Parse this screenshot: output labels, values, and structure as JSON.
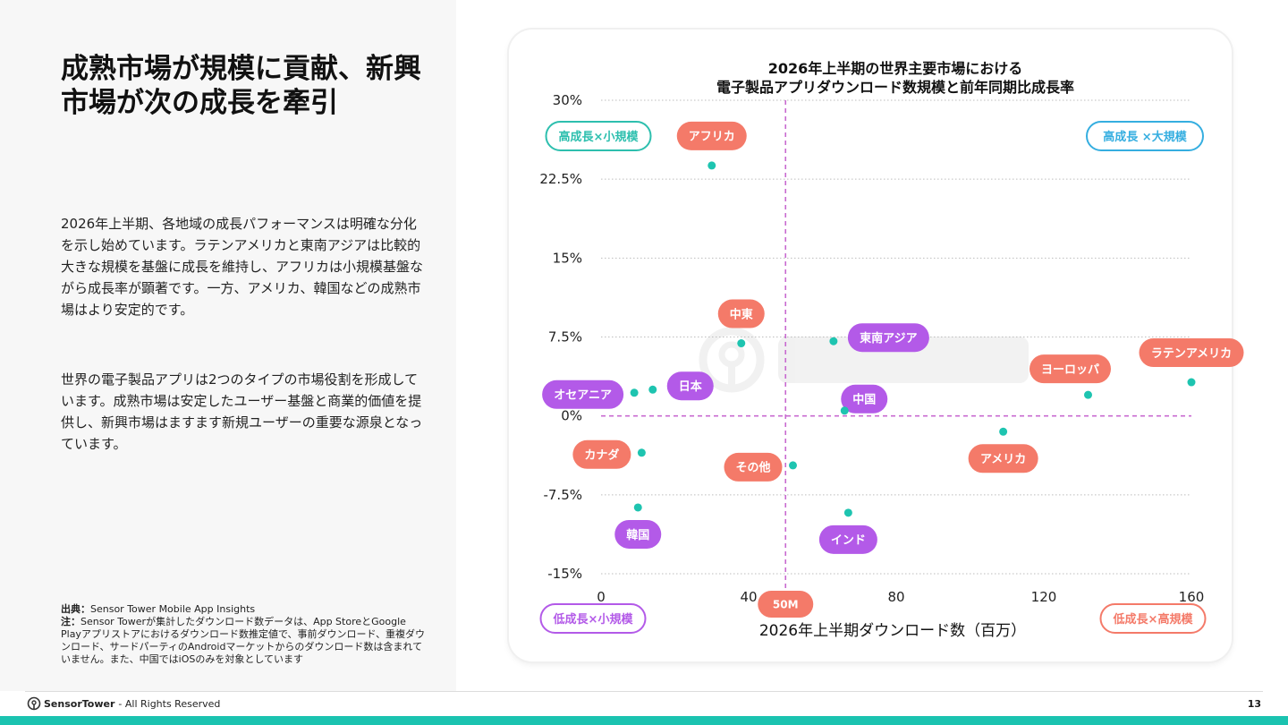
{
  "slide": {
    "title": "成熟市場が規模に貢献、新興市場が次の成長を牽引",
    "paragraph_1": "2026年上半期、各地域の成長パフォーマンスは明確な分化を示し始めています。ラテンアメリカと東南アジアは比較的大きな規模を基盤に成長を維持し、アフリカは小規模基盤ながら成長率が顕著です。一方、アメリカ、韓国などの成熟市場はより安定的です。",
    "paragraph_2": "世界の電子製品アプリは2つのタイプの市場役割を形成しています。成熟市場は安定したユーザー基盤と商業的価値を提供し、新興市場はますます新規ユーザーの重要な源泉となっています。",
    "source_label": "出典：",
    "source_text": "Sensor Tower Mobile App Insights",
    "note_label": "注：",
    "note_text": "Sensor Towerが集計したダウンロード数データは、App StoreとGoogle Playアプリストアにおけるダウンロード数推定値で、事前ダウンロード、重複ダウンロード、サードパーティのAndroidマーケットからのダウンロード数は含まれていません。また、中国ではiOSのみを対象としています"
  },
  "footer": {
    "brand": "SensorTower",
    "rights": "- All Rights Reserved",
    "page": "13"
  },
  "colors": {
    "point": "#1ec4b0",
    "label_coral": "#f47a69",
    "label_purple": "#b35ae8",
    "divider": "#c86ad0",
    "teal_badge": "#2dbfae",
    "blue_badge": "#35aee0",
    "purple_badge": "#b35ae8",
    "coral_badge": "#f47a69",
    "accent_bar": "#1bc3b0"
  },
  "chart_data": {
    "type": "scatter",
    "title_line1": "2026年上半期の世界主要市場における",
    "title_line2": "電子製品アプリダウンロード数規模と前年同期比成長率",
    "xlabel": "2026年上半期ダウンロード数（百万）",
    "ylabel": "",
    "xlim": [
      0,
      160
    ],
    "ylim": [
      -15,
      30
    ],
    "x_ticks": [
      0,
      40,
      80,
      120,
      160
    ],
    "y_ticks": [
      30,
      22.5,
      15,
      7.5,
      0,
      -7.5,
      -15
    ],
    "y_tick_labels": [
      "30%",
      "22.5%",
      "15%",
      "7.5%",
      "0%",
      "-7.5%",
      "-15%"
    ],
    "grid": true,
    "divider_x": 50,
    "divider_x_label": "50M",
    "divider_y": 0,
    "quadrants": {
      "top_left": "高成長×小規模",
      "top_right": "高成長 ×大規模",
      "bottom_left": "低成長×小規模",
      "bottom_right": "低成長×高規模"
    },
    "points": [
      {
        "name": "アフリカ",
        "x": 30,
        "y": 23.8,
        "label_color": "coral",
        "label_pos": "above"
      },
      {
        "name": "中東",
        "x": 38,
        "y": 6.9,
        "label_color": "coral",
        "label_pos": "above"
      },
      {
        "name": "東南アジア",
        "x": 63,
        "y": 7.1,
        "label_color": "purple",
        "label_pos": "right"
      },
      {
        "name": "ラテンアメリカ",
        "x": 160,
        "y": 3.2,
        "label_color": "coral",
        "label_pos": "above"
      },
      {
        "name": "ヨーロッパ",
        "x": 132,
        "y": 2.0,
        "label_color": "coral",
        "label_pos": "above-left"
      },
      {
        "name": "日本",
        "x": 14,
        "y": 2.5,
        "label_color": "purple",
        "label_pos": "right"
      },
      {
        "name": "オセアニア",
        "x": 9,
        "y": 2.2,
        "label_color": "purple",
        "label_pos": "left"
      },
      {
        "name": "中国",
        "x": 66,
        "y": 0.5,
        "label_color": "purple",
        "label_pos": "above-right"
      },
      {
        "name": "アメリカ",
        "x": 109,
        "y": -1.5,
        "label_color": "coral",
        "label_pos": "below"
      },
      {
        "name": "カナダ",
        "x": 11,
        "y": -3.5,
        "label_color": "coral",
        "label_pos": "left"
      },
      {
        "name": "その他",
        "x": 52,
        "y": -4.7,
        "label_color": "coral",
        "label_pos": "left"
      },
      {
        "name": "韓国",
        "x": 10,
        "y": -8.7,
        "label_color": "purple",
        "label_pos": "below"
      },
      {
        "name": "インド",
        "x": 67,
        "y": -9.2,
        "label_color": "purple",
        "label_pos": "below"
      }
    ]
  }
}
